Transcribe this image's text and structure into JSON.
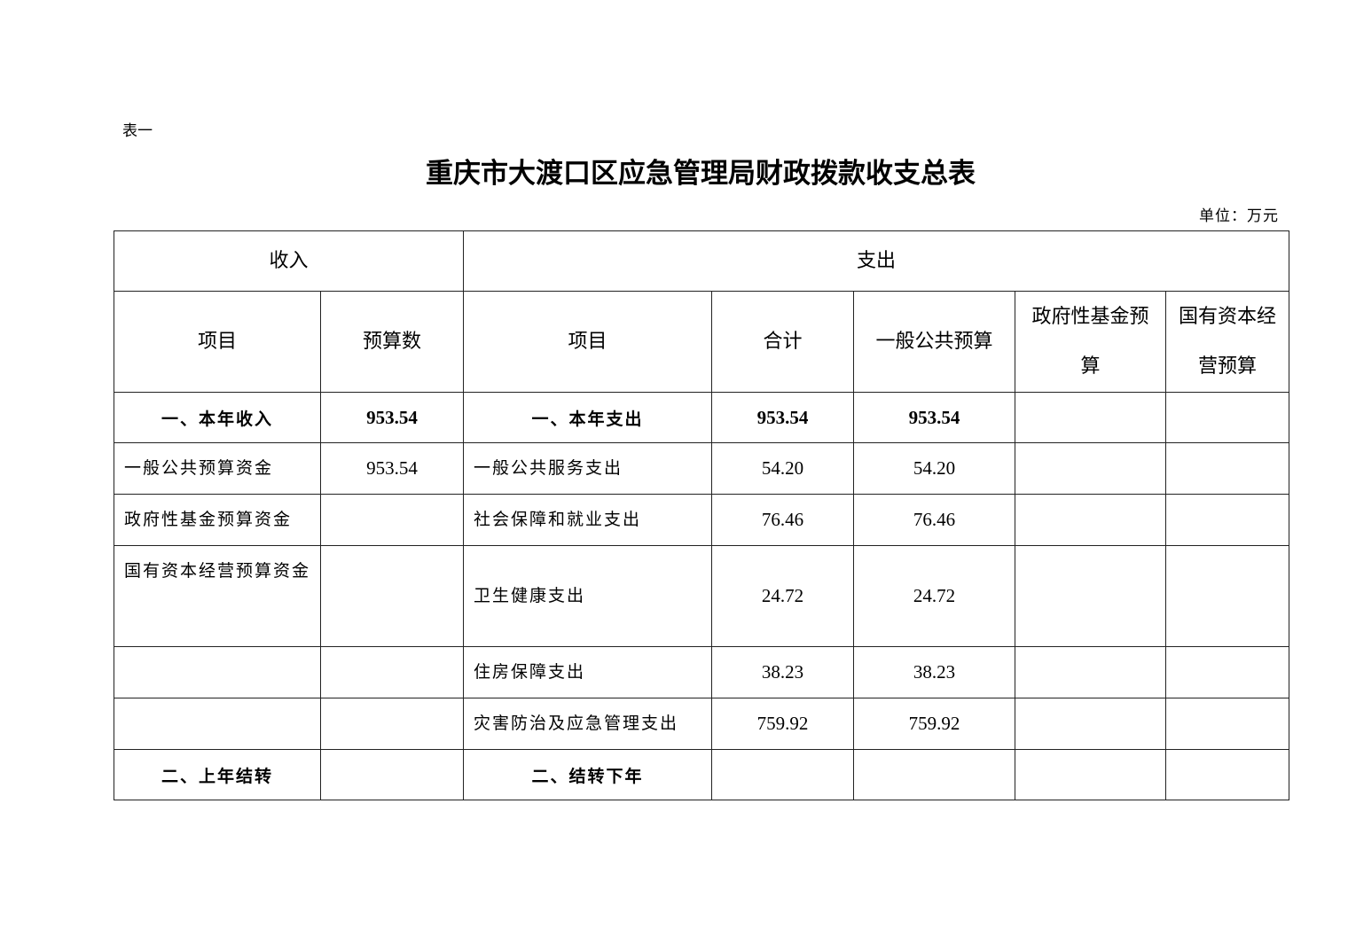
{
  "doc": {
    "label": "表一",
    "title": "重庆市大渡口区应急管理局财政拨款收支总表",
    "unit": "单位：万元"
  },
  "table": {
    "group_headers": [
      "收入",
      "支出"
    ],
    "col_headers": [
      "项目",
      "预算数",
      "项目",
      "合计",
      "一般公共预算",
      "政府性基金预算",
      "国有资本经营预算"
    ],
    "rows": [
      [
        "一、本年收入",
        "953.54",
        "一、本年支出",
        "953.54",
        "953.54",
        "",
        ""
      ],
      [
        "一般公共预算资金",
        "953.54",
        "一般公共服务支出",
        "54.20",
        "54.20",
        "",
        ""
      ],
      [
        "政府性基金预算资金",
        "",
        "社会保障和就业支出",
        "76.46",
        "76.46",
        "",
        ""
      ],
      [
        "国有资本经营预算资金",
        "",
        "卫生健康支出",
        "24.72",
        "24.72",
        "",
        ""
      ],
      [
        "",
        "",
        "住房保障支出",
        "38.23",
        "38.23",
        "",
        ""
      ],
      [
        "",
        "",
        "灾害防治及应急管理支出",
        "759.92",
        "759.92",
        "",
        ""
      ],
      [
        "二、上年结转",
        "",
        "二、结转下年",
        "",
        "",
        "",
        ""
      ]
    ]
  }
}
